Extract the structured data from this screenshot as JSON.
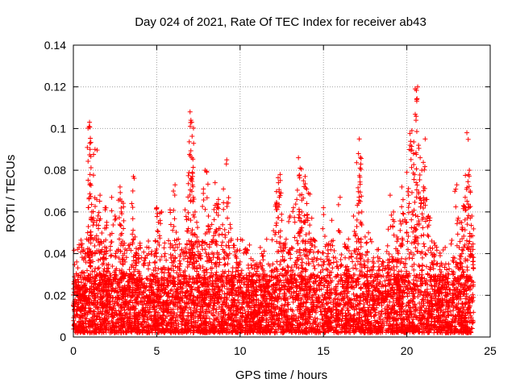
{
  "chart_data": {
    "type": "scatter",
    "title": "Day 024 of 2021, Rate Of TEC Index for receiver ab43",
    "xlabel": "GPS time / hours",
    "ylabel": "ROTI / TECUs",
    "xlim": [
      0,
      25
    ],
    "ylim": [
      0,
      0.14
    ],
    "xticks": [
      0,
      5,
      10,
      15,
      20,
      25
    ],
    "xtick_labels": [
      "0",
      "5",
      "10",
      "15",
      "20",
      "25"
    ],
    "yticks": [
      0,
      0.02,
      0.04,
      0.06,
      0.08,
      0.1,
      0.12,
      0.14
    ],
    "ytick_labels": [
      "0",
      "0.02",
      "0.04",
      "0.06",
      "0.08",
      "0.1",
      "0.12",
      "0.14"
    ],
    "grid": true,
    "marker": "+",
    "color": "#ff0000",
    "series": [
      {
        "name": "ROTI",
        "points": [
          [
            0.2,
            0.036
          ],
          [
            0.3,
            0.025
          ],
          [
            0.5,
            0.031
          ],
          [
            0.7,
            0.04
          ],
          [
            0.8,
            0.047
          ],
          [
            0.9,
            0.053
          ],
          [
            0.95,
            0.101
          ],
          [
            0.97,
            0.103
          ],
          [
            1.0,
            0.09
          ],
          [
            1.0,
            0.078
          ],
          [
            1.1,
            0.06
          ],
          [
            1.2,
            0.057
          ],
          [
            1.3,
            0.09
          ],
          [
            1.4,
            0.066
          ],
          [
            1.5,
            0.052
          ],
          [
            1.6,
            0.068
          ],
          [
            1.7,
            0.045
          ],
          [
            1.8,
            0.038
          ],
          [
            1.9,
            0.062
          ],
          [
            2.0,
            0.055
          ],
          [
            2.1,
            0.033
          ],
          [
            2.2,
            0.049
          ],
          [
            2.3,
            0.067
          ],
          [
            2.5,
            0.058
          ],
          [
            2.7,
            0.042
          ],
          [
            2.8,
            0.072
          ],
          [
            2.9,
            0.065
          ],
          [
            3.0,
            0.052
          ],
          [
            3.1,
            0.036
          ],
          [
            3.3,
            0.044
          ],
          [
            3.5,
            0.064
          ],
          [
            3.6,
            0.077
          ],
          [
            3.7,
            0.048
          ],
          [
            3.8,
            0.04
          ],
          [
            4.0,
            0.045
          ],
          [
            4.3,
            0.038
          ],
          [
            4.5,
            0.046
          ],
          [
            4.7,
            0.03
          ],
          [
            4.9,
            0.036
          ],
          [
            5.0,
            0.062
          ],
          [
            5.1,
            0.055
          ],
          [
            5.3,
            0.06
          ],
          [
            5.5,
            0.04
          ],
          [
            5.7,
            0.033
          ],
          [
            5.8,
            0.061
          ],
          [
            6.0,
            0.07
          ],
          [
            6.1,
            0.073
          ],
          [
            6.3,
            0.047
          ],
          [
            6.5,
            0.042
          ],
          [
            6.7,
            0.061
          ],
          [
            6.9,
            0.052
          ],
          [
            7.0,
            0.108
          ],
          [
            7.05,
            0.104
          ],
          [
            7.1,
            0.103
          ],
          [
            7.1,
            0.086
          ],
          [
            7.15,
            0.077
          ],
          [
            7.2,
            0.067
          ],
          [
            7.3,
            0.06
          ],
          [
            7.4,
            0.055
          ],
          [
            7.5,
            0.046
          ],
          [
            7.6,
            0.04
          ],
          [
            7.8,
            0.071
          ],
          [
            7.9,
            0.08
          ],
          [
            8.0,
            0.079
          ],
          [
            8.1,
            0.058
          ],
          [
            8.3,
            0.054
          ],
          [
            8.5,
            0.074
          ],
          [
            8.6,
            0.064
          ],
          [
            8.7,
            0.066
          ],
          [
            8.8,
            0.052
          ],
          [
            9.0,
            0.071
          ],
          [
            9.2,
            0.085
          ],
          [
            9.4,
            0.054
          ],
          [
            9.6,
            0.044
          ],
          [
            9.8,
            0.041
          ],
          [
            10.0,
            0.036
          ],
          [
            10.3,
            0.042
          ],
          [
            10.5,
            0.033
          ],
          [
            10.8,
            0.03
          ],
          [
            11.0,
            0.035
          ],
          [
            11.3,
            0.04
          ],
          [
            11.5,
            0.03
          ],
          [
            11.7,
            0.035
          ],
          [
            12.0,
            0.051
          ],
          [
            12.2,
            0.064
          ],
          [
            12.3,
            0.074
          ],
          [
            12.4,
            0.078
          ],
          [
            12.5,
            0.056
          ],
          [
            12.7,
            0.045
          ],
          [
            12.9,
            0.04
          ],
          [
            13.0,
            0.058
          ],
          [
            13.2,
            0.062
          ],
          [
            13.4,
            0.066
          ],
          [
            13.5,
            0.086
          ],
          [
            13.6,
            0.081
          ],
          [
            13.7,
            0.06
          ],
          [
            13.8,
            0.075
          ],
          [
            13.9,
            0.077
          ],
          [
            14.0,
            0.064
          ],
          [
            14.1,
            0.069
          ],
          [
            14.3,
            0.057
          ],
          [
            14.5,
            0.046
          ],
          [
            14.7,
            0.041
          ],
          [
            15.0,
            0.062
          ],
          [
            15.3,
            0.044
          ],
          [
            15.5,
            0.056
          ],
          [
            15.8,
            0.036
          ],
          [
            16.0,
            0.067
          ],
          [
            16.3,
            0.038
          ],
          [
            16.5,
            0.047
          ],
          [
            16.8,
            0.058
          ],
          [
            17.0,
            0.053
          ],
          [
            17.1,
            0.088
          ],
          [
            17.15,
            0.095
          ],
          [
            17.2,
            0.081
          ],
          [
            17.3,
            0.06
          ],
          [
            17.5,
            0.048
          ],
          [
            17.7,
            0.05
          ],
          [
            18.0,
            0.038
          ],
          [
            18.3,
            0.042
          ],
          [
            18.5,
            0.035
          ],
          [
            18.8,
            0.041
          ],
          [
            19.0,
            0.068
          ],
          [
            19.2,
            0.06
          ],
          [
            19.4,
            0.048
          ],
          [
            19.5,
            0.037
          ],
          [
            19.7,
            0.072
          ],
          [
            19.8,
            0.059
          ],
          [
            20.0,
            0.079
          ],
          [
            20.1,
            0.068
          ],
          [
            20.2,
            0.092
          ],
          [
            20.3,
            0.099
          ],
          [
            20.4,
            0.088
          ],
          [
            20.5,
            0.119
          ],
          [
            20.55,
            0.104
          ],
          [
            20.6,
            0.114
          ],
          [
            20.65,
            0.12
          ],
          [
            20.7,
            0.092
          ],
          [
            20.8,
            0.086
          ],
          [
            20.9,
            0.08
          ],
          [
            21.0,
            0.072
          ],
          [
            21.1,
            0.095
          ],
          [
            21.2,
            0.066
          ],
          [
            21.3,
            0.058
          ],
          [
            21.5,
            0.046
          ],
          [
            21.7,
            0.044
          ],
          [
            22.0,
            0.039
          ],
          [
            22.3,
            0.043
          ],
          [
            22.5,
            0.035
          ],
          [
            22.8,
            0.036
          ],
          [
            23.0,
            0.073
          ],
          [
            23.2,
            0.055
          ],
          [
            23.3,
            0.04
          ],
          [
            23.4,
            0.063
          ],
          [
            23.5,
            0.067
          ],
          [
            23.6,
            0.098
          ],
          [
            23.7,
            0.078
          ],
          [
            23.75,
            0.08
          ],
          [
            23.8,
            0.07
          ],
          [
            23.9,
            0.058
          ]
        ],
        "dense_band": {
          "x_range": [
            0,
            24
          ],
          "typical_range": [
            0.002,
            0.03
          ],
          "upper_spread": 0.045
        }
      }
    ]
  }
}
